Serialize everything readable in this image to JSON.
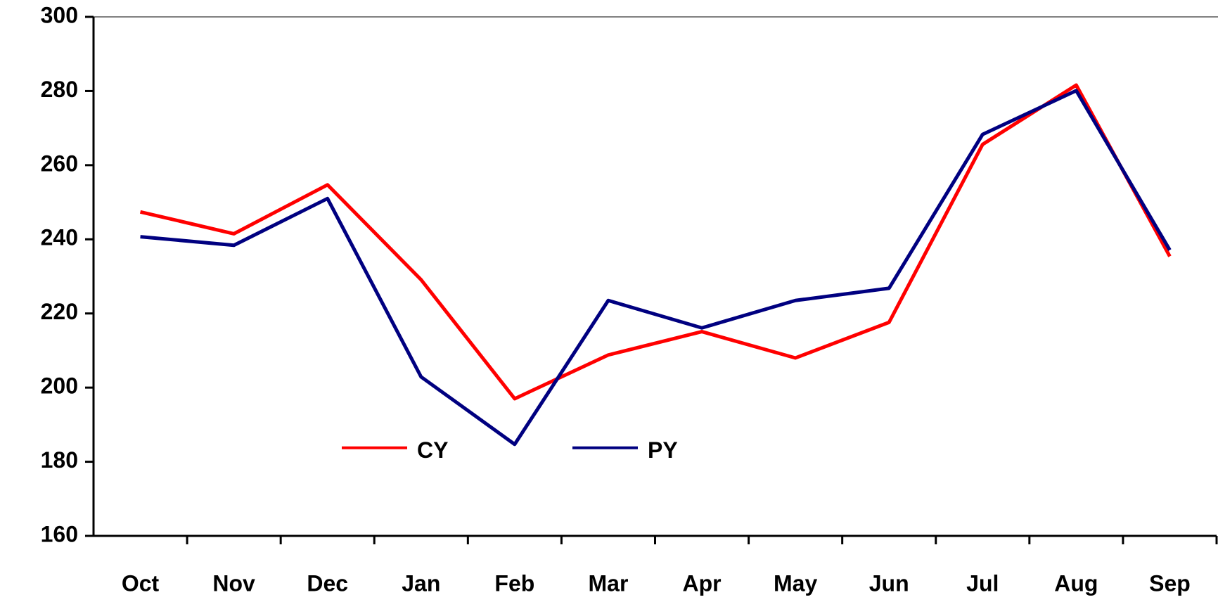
{
  "chart_data": {
    "type": "line",
    "categories": [
      "Oct",
      "Nov",
      "Dec",
      "Jan",
      "Feb",
      "Mar",
      "Apr",
      "May",
      "Jun",
      "Jul",
      "Aug",
      "Sep"
    ],
    "series": [
      {
        "name": "CY",
        "color": "#ff0000",
        "values": [
          247.4,
          241.5,
          254.7,
          229.1,
          197,
          208.8,
          215.1,
          208,
          217.6,
          265.6,
          281.6,
          235.4
        ]
      },
      {
        "name": "PY",
        "color": "#000080",
        "values": [
          240.7,
          238.4,
          251,
          202.9,
          184.7,
          223.5,
          216.1,
          223.5,
          226.8,
          268.3,
          280.1,
          237.1
        ]
      }
    ],
    "ylim": [
      160,
      300
    ],
    "yticks": [
      160,
      180,
      200,
      220,
      240,
      260,
      280,
      300
    ],
    "legend": "lower-left",
    "grid": false
  }
}
